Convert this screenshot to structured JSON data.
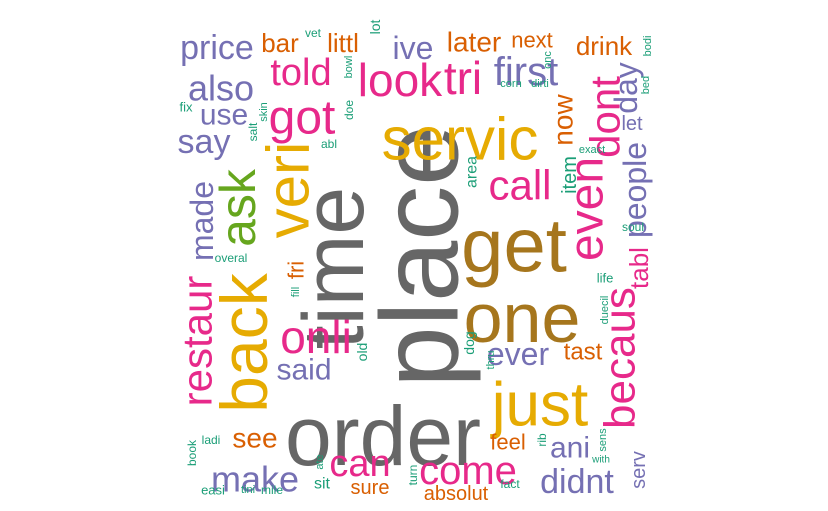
{
  "palette": {
    "gray": "#666666",
    "gold": "#E6AB02",
    "brown": "#A6761D",
    "magenta": "#E7298A",
    "purple": "#7570B3",
    "orange": "#D95F02",
    "teal": "#1B9E77",
    "green": "#66A61E"
  },
  "words": [
    {
      "text": "place",
      "color": "gray"
    },
    {
      "text": "order",
      "color": "gray"
    },
    {
      "text": "time",
      "color": "gray"
    },
    {
      "text": "get",
      "color": "brown"
    },
    {
      "text": "one",
      "color": "brown"
    },
    {
      "text": "servic",
      "color": "gold"
    },
    {
      "text": "just",
      "color": "gold"
    },
    {
      "text": "back",
      "color": "gold"
    },
    {
      "text": "veri",
      "color": "gold"
    },
    {
      "text": "ask",
      "color": "green"
    },
    {
      "text": "even",
      "color": "magenta"
    },
    {
      "text": "becaus",
      "color": "magenta"
    },
    {
      "text": "dont",
      "color": "magenta"
    },
    {
      "text": "restaur",
      "color": "magenta"
    },
    {
      "text": "onli",
      "color": "magenta"
    },
    {
      "text": "got",
      "color": "magenta"
    },
    {
      "text": "look",
      "color": "magenta"
    },
    {
      "text": "tri",
      "color": "magenta"
    },
    {
      "text": "told",
      "color": "magenta"
    },
    {
      "text": "call",
      "color": "magenta"
    },
    {
      "text": "come",
      "color": "magenta"
    },
    {
      "text": "can",
      "color": "magenta"
    },
    {
      "text": "first",
      "color": "purple"
    },
    {
      "text": "also",
      "color": "purple"
    },
    {
      "text": "price",
      "color": "purple"
    },
    {
      "text": "say",
      "color": "purple"
    },
    {
      "text": "use",
      "color": "purple"
    },
    {
      "text": "made",
      "color": "purple"
    },
    {
      "text": "make",
      "color": "purple"
    },
    {
      "text": "said",
      "color": "purple"
    },
    {
      "text": "ever",
      "color": "purple"
    },
    {
      "text": "didnt",
      "color": "purple"
    },
    {
      "text": "ani",
      "color": "purple"
    },
    {
      "text": "people",
      "color": "purple"
    },
    {
      "text": "day",
      "color": "purple"
    },
    {
      "text": "ive",
      "color": "purple"
    },
    {
      "text": "tabl",
      "color": "magenta"
    },
    {
      "text": "now",
      "color": "orange"
    },
    {
      "text": "later",
      "color": "orange"
    },
    {
      "text": "next",
      "color": "orange"
    },
    {
      "text": "drink",
      "color": "orange"
    },
    {
      "text": "bar",
      "color": "orange"
    },
    {
      "text": "littl",
      "color": "orange"
    },
    {
      "text": "see",
      "color": "orange"
    },
    {
      "text": "fri",
      "color": "orange"
    },
    {
      "text": "tast",
      "color": "orange"
    },
    {
      "text": "feel",
      "color": "orange"
    },
    {
      "text": "sure",
      "color": "orange"
    },
    {
      "text": "absolut",
      "color": "orange"
    },
    {
      "text": "let",
      "color": "purple"
    },
    {
      "text": "serv",
      "color": "purple"
    },
    {
      "text": "item",
      "color": "teal"
    },
    {
      "text": "area",
      "color": "teal"
    },
    {
      "text": "lot",
      "color": "teal"
    },
    {
      "text": "vet",
      "color": "teal"
    },
    {
      "text": "fix",
      "color": "teal"
    },
    {
      "text": "salt",
      "color": "teal"
    },
    {
      "text": "skin",
      "color": "teal"
    },
    {
      "text": "bowl",
      "color": "teal"
    },
    {
      "text": "doe",
      "color": "teal"
    },
    {
      "text": "abl",
      "color": "teal"
    },
    {
      "text": "corn",
      "color": "teal"
    },
    {
      "text": "dirti",
      "color": "teal"
    },
    {
      "text": "onc",
      "color": "teal"
    },
    {
      "text": "bodi",
      "color": "teal"
    },
    {
      "text": "bed",
      "color": "teal"
    },
    {
      "text": "exact",
      "color": "teal"
    },
    {
      "text": "soul",
      "color": "teal"
    },
    {
      "text": "overal",
      "color": "teal"
    },
    {
      "text": "fill",
      "color": "teal"
    },
    {
      "text": "old",
      "color": "teal"
    },
    {
      "text": "life",
      "color": "teal"
    },
    {
      "text": "duecil",
      "color": "teal"
    },
    {
      "text": "dog",
      "color": "teal"
    },
    {
      "text": "thru",
      "color": "teal"
    },
    {
      "text": "book",
      "color": "teal"
    },
    {
      "text": "ladi",
      "color": "teal"
    },
    {
      "text": "easi",
      "color": "teal"
    },
    {
      "text": "tini",
      "color": "teal"
    },
    {
      "text": "mile",
      "color": "teal"
    },
    {
      "text": "ate",
      "color": "teal"
    },
    {
      "text": "sit",
      "color": "teal"
    },
    {
      "text": "turn",
      "color": "teal"
    },
    {
      "text": "fact",
      "color": "teal"
    },
    {
      "text": "rib",
      "color": "teal"
    },
    {
      "text": "sens",
      "color": "teal"
    },
    {
      "text": "with",
      "color": "teal"
    }
  ]
}
